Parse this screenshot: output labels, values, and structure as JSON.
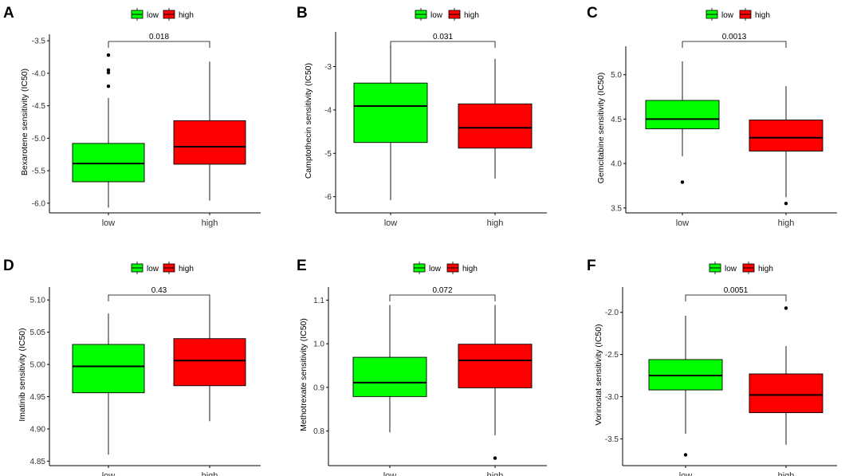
{
  "colors": {
    "low": "#00ff00",
    "high": "#ff0000",
    "outline": "#000000"
  },
  "chart_data": [
    {
      "type": "box",
      "letter": "A",
      "ylabel": "Bexarotene sensitivity (IC50)",
      "ylim": [
        -6.1,
        -3.4
      ],
      "yticks": [
        -6.0,
        -5.5,
        -5.0,
        -4.5,
        -4.0,
        -3.5
      ],
      "ytick_labels": [
        "-6.0",
        "-5.5",
        "-5.0",
        "-4.5",
        "-4.0",
        "-3.5"
      ],
      "categories": [
        "low",
        "high"
      ],
      "legend": [
        "low",
        "high"
      ],
      "pvalue": "0.018",
      "boxes": [
        {
          "group": "low",
          "whisker_low": -6.07,
          "q1": -5.67,
          "median": -5.39,
          "q3": -5.08,
          "whisker_high": -4.38,
          "outliers": [
            -4.2,
            -3.99,
            -3.95,
            -3.72
          ]
        },
        {
          "group": "high",
          "whisker_low": -5.96,
          "q1": -5.4,
          "median": -5.13,
          "q3": -4.73,
          "whisker_high": -3.82,
          "outliers": []
        }
      ]
    },
    {
      "type": "box",
      "letter": "B",
      "ylabel": "Camptothecin sensitivity (IC50)",
      "ylim": [
        -6.3,
        -2.2
      ],
      "yticks": [
        -6,
        -5,
        -4,
        -3
      ],
      "ytick_labels": [
        "-6",
        "-5",
        "-4",
        "-3"
      ],
      "categories": [
        "low",
        "high"
      ],
      "legend": [
        "low",
        "high"
      ],
      "pvalue": "0.031",
      "boxes": [
        {
          "group": "low",
          "whisker_low": -6.08,
          "q1": -4.75,
          "median": -3.91,
          "q3": -3.38,
          "whisker_high": -2.52,
          "outliers": []
        },
        {
          "group": "high",
          "whisker_low": -5.58,
          "q1": -4.88,
          "median": -4.41,
          "q3": -3.86,
          "whisker_high": -2.82,
          "outliers": []
        }
      ]
    },
    {
      "type": "box",
      "letter": "C",
      "ylabel": "Gemcitabine sensitivity (IC50)",
      "ylim": [
        3.48,
        5.32
      ],
      "yticks": [
        3.5,
        4.0,
        4.5,
        5.0
      ],
      "ytick_labels": [
        "3.5",
        "4.0",
        "4.5",
        "5.0"
      ],
      "categories": [
        "low",
        "high"
      ],
      "legend": [
        "low",
        "high"
      ],
      "pvalue": "0.0013",
      "boxes": [
        {
          "group": "low",
          "whisker_low": 4.08,
          "q1": 4.39,
          "median": 4.5,
          "q3": 4.71,
          "whisker_high": 5.15,
          "outliers": [
            3.79
          ]
        },
        {
          "group": "high",
          "whisker_low": 3.62,
          "q1": 4.14,
          "median": 4.29,
          "q3": 4.49,
          "whisker_high": 4.87,
          "outliers": [
            3.55
          ]
        }
      ]
    },
    {
      "type": "box",
      "letter": "D",
      "ylabel": "Imatinib sensitivity (IC50)",
      "ylim": [
        4.848,
        5.12
      ],
      "yticks": [
        4.85,
        4.9,
        4.95,
        5.0,
        5.05,
        5.1
      ],
      "ytick_labels": [
        "4.85",
        "4.90",
        "4.95",
        "5.00",
        "5.05",
        "5.10"
      ],
      "categories": [
        "low",
        "high"
      ],
      "legend": [
        "low",
        "high"
      ],
      "pvalue": "0.43",
      "boxes": [
        {
          "group": "low",
          "whisker_low": 4.86,
          "q1": 4.956,
          "median": 4.997,
          "q3": 5.031,
          "whisker_high": 5.079,
          "outliers": []
        },
        {
          "group": "high",
          "whisker_low": 4.912,
          "q1": 4.967,
          "median": 5.006,
          "q3": 5.04,
          "whisker_high": 5.099,
          "outliers": []
        }
      ]
    },
    {
      "type": "box",
      "letter": "E",
      "ylabel": "Methotrexate sensitivity (IC50)",
      "ylim": [
        0.728,
        1.13
      ],
      "yticks": [
        0.8,
        0.9,
        1.0,
        1.1
      ],
      "ytick_labels": [
        "0.8",
        "0.9",
        "1.0",
        "1.1"
      ],
      "categories": [
        "low",
        "high"
      ],
      "legend": [
        "low",
        "high"
      ],
      "pvalue": "0.072",
      "boxes": [
        {
          "group": "low",
          "whisker_low": 0.797,
          "q1": 0.879,
          "median": 0.911,
          "q3": 0.969,
          "whisker_high": 1.089,
          "outliers": []
        },
        {
          "group": "high",
          "whisker_low": 0.79,
          "q1": 0.899,
          "median": 0.962,
          "q3": 0.999,
          "whisker_high": 1.089,
          "outliers": [
            0.738
          ]
        }
      ]
    },
    {
      "type": "box",
      "letter": "F",
      "ylabel": "Vorinostat sensitivity (IC50)",
      "ylim": [
        -3.78,
        -1.7
      ],
      "yticks": [
        -3.5,
        -3.0,
        -2.5,
        -2.0
      ],
      "ytick_labels": [
        "-3.5",
        "-3.0",
        "-2.5",
        "-2.0"
      ],
      "categories": [
        "low",
        "high"
      ],
      "legend": [
        "low",
        "high"
      ],
      "pvalue": "0.0051",
      "boxes": [
        {
          "group": "low",
          "whisker_low": -3.44,
          "q1": -2.92,
          "median": -2.75,
          "q3": -2.56,
          "whisker_high": -2.04,
          "outliers": [
            -3.69
          ]
        },
        {
          "group": "high",
          "whisker_low": -3.57,
          "q1": -3.19,
          "median": -2.98,
          "q3": -2.73,
          "whisker_high": -2.4,
          "outliers": [
            -1.95
          ]
        }
      ]
    }
  ]
}
